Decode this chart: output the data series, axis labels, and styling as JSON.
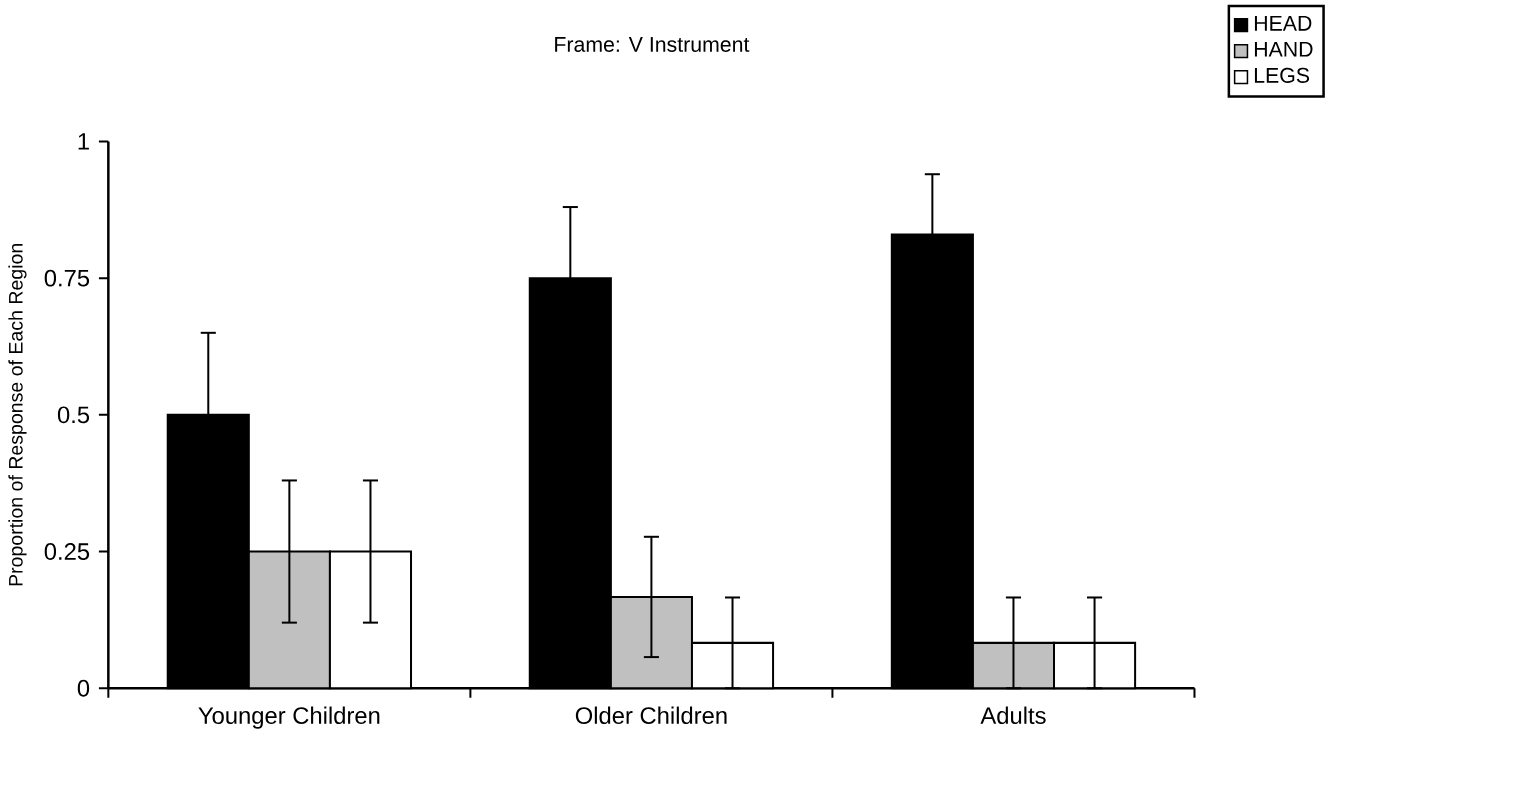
{
  "chart_data": {
    "type": "bar",
    "title": "Frame: V Instrument",
    "ylabel": "Proportion of Response of Each Region",
    "categories": [
      "Younger Children",
      "Older Children",
      "Adults"
    ],
    "series": [
      {
        "name": "HEAD",
        "color": "#000000",
        "values": [
          0.5,
          0.75,
          0.83
        ],
        "errors": [
          0.15,
          0.13,
          0.11
        ]
      },
      {
        "name": "HAND",
        "color": "#c0c0c0",
        "values": [
          0.25,
          0.167,
          0.083
        ],
        "errors": [
          0.13,
          0.11,
          0.083
        ]
      },
      {
        "name": "LEGS",
        "color": "#ffffff",
        "values": [
          0.25,
          0.083,
          0.083
        ],
        "errors": [
          0.13,
          0.083,
          0.083
        ]
      }
    ],
    "ylim": [
      0,
      1
    ],
    "yticks": [
      0,
      0.25,
      0.5,
      0.75,
      1
    ],
    "legend": "top right",
    "grid": false
  }
}
